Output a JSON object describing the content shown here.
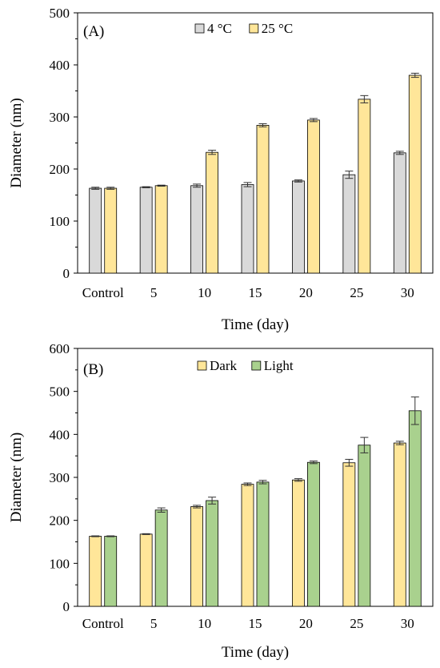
{
  "chart_data": [
    {
      "type": "bar",
      "panel_label": "(A)",
      "xlabel": "Time (day)",
      "ylabel": "Diameter (nm)",
      "categories": [
        "Control",
        "5",
        "10",
        "15",
        "20",
        "25",
        "30"
      ],
      "ylim": [
        0,
        500
      ],
      "yticks": [
        "0",
        "100",
        "200",
        "300",
        "400",
        "500"
      ],
      "legend_position": "top",
      "grid": false,
      "series": [
        {
          "name": "4 °C",
          "color": "#d9d9d9",
          "values": [
            163,
            165,
            168,
            170,
            177,
            189,
            231
          ],
          "errors": [
            2,
            1,
            3,
            4,
            2,
            7,
            3
          ]
        },
        {
          "name": "25 °C",
          "color": "#ffe699",
          "values": [
            163,
            168,
            232,
            284,
            294,
            334,
            380
          ],
          "errors": [
            2,
            1,
            4,
            3,
            3,
            7,
            4
          ]
        }
      ]
    },
    {
      "type": "bar",
      "panel_label": "(B)",
      "xlabel": "Time (day)",
      "ylabel": "Diameter (nm)",
      "categories": [
        "Control",
        "5",
        "10",
        "15",
        "20",
        "25",
        "30"
      ],
      "ylim": [
        0,
        600
      ],
      "yticks": [
        "0",
        "100",
        "200",
        "300",
        "400",
        "500",
        "600"
      ],
      "legend_position": "top",
      "grid": false,
      "series": [
        {
          "name": "Dark",
          "color": "#ffe699",
          "values": [
            163,
            168,
            232,
            284,
            294,
            334,
            380
          ],
          "errors": [
            1,
            1,
            3,
            3,
            3,
            8,
            4
          ]
        },
        {
          "name": "Light",
          "color": "#a9d18e",
          "values": [
            163,
            224,
            246,
            289,
            335,
            375,
            455
          ],
          "errors": [
            1,
            5,
            8,
            4,
            3,
            18,
            32
          ]
        }
      ]
    }
  ]
}
